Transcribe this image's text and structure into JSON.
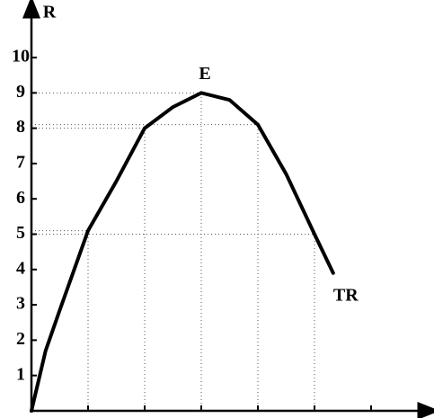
{
  "chart_data": {
    "type": "line",
    "y_label": "R",
    "x": [
      0,
      0.25,
      0.5,
      1,
      1.5,
      2,
      2.5,
      3,
      3.5,
      4,
      4.5,
      5,
      5.33
    ],
    "series": [
      {
        "name": "TR",
        "color": "#000000",
        "values": [
          0,
          1.7,
          2.85,
          5.1,
          6.5,
          8,
          8.6,
          9,
          8.8,
          8.1,
          6.7,
          5,
          3.9
        ]
      }
    ],
    "annotations": [
      {
        "text": "E",
        "x": 3,
        "y": 9
      }
    ],
    "xlim": [
      0,
      7
    ],
    "ylim": [
      0,
      11.4
    ],
    "xticks": [
      1,
      2,
      3,
      4,
      5,
      6
    ],
    "yticks": [
      1,
      2,
      3,
      4,
      5,
      6,
      7,
      8,
      9,
      10
    ]
  }
}
